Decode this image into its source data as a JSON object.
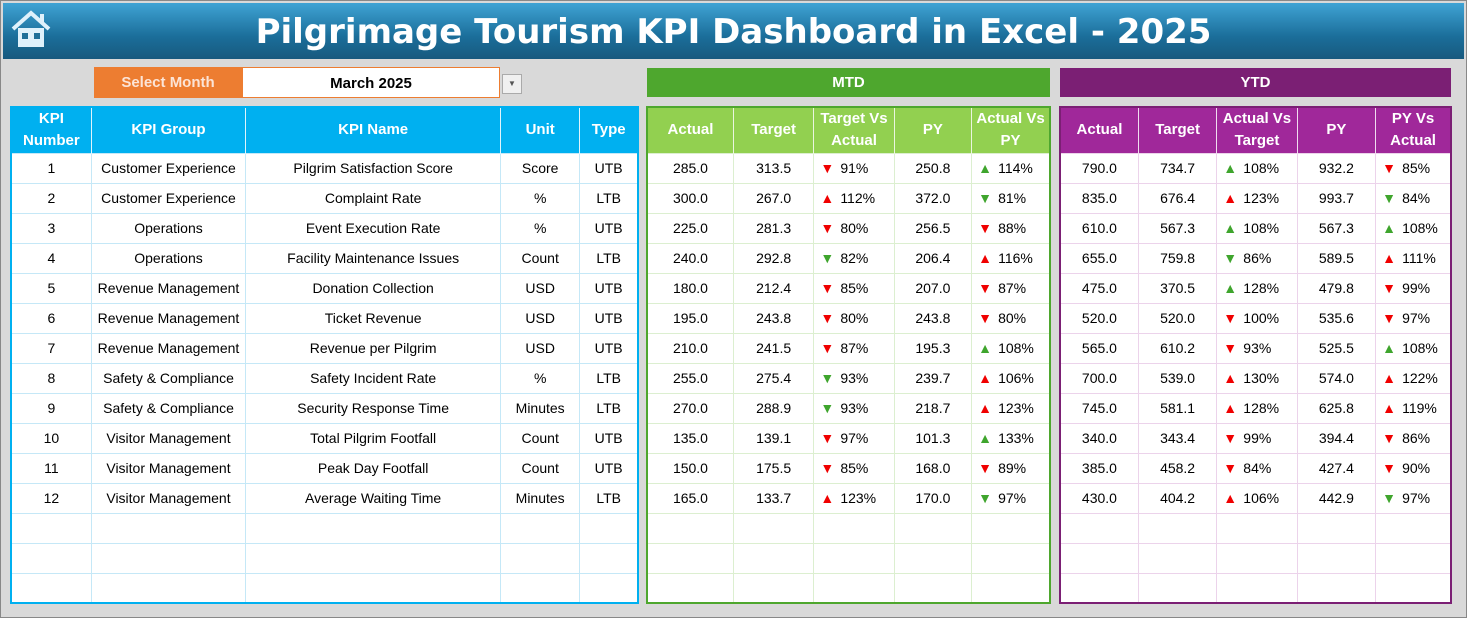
{
  "title": "Pilgrimage Tourism KPI Dashboard in Excel - 2025",
  "home_icon": "home-icon",
  "select_month": {
    "label": "Select Month",
    "value": "March 2025"
  },
  "colors": {
    "left": "#00b0f0",
    "mtd": "#4ea72e",
    "ytd": "#7b1f74",
    "select": "#ed7d31",
    "up_good": "#3fa52d",
    "bad": "#f00000"
  },
  "mtd_label": "MTD",
  "ytd_label": "YTD",
  "left_headers": [
    "KPI Number",
    "KPI Group",
    "KPI Name",
    "Unit",
    "Type"
  ],
  "mtd_headers": [
    "Actual",
    "Target",
    "Target Vs Actual",
    "PY",
    "Actual Vs PY"
  ],
  "ytd_headers": [
    "Actual",
    "Target",
    "Actual Vs Target",
    "PY",
    "PY Vs Actual"
  ],
  "kpis": [
    [
      "1",
      "Customer Experience",
      "Pilgrim Satisfaction Score",
      "Score",
      "UTB"
    ],
    [
      "2",
      "Customer Experience",
      "Complaint Rate",
      "%",
      "LTB"
    ],
    [
      "3",
      "Operations",
      "Event Execution Rate",
      "%",
      "UTB"
    ],
    [
      "4",
      "Operations",
      "Facility Maintenance Issues",
      "Count",
      "LTB"
    ],
    [
      "5",
      "Revenue Management",
      "Donation Collection",
      "USD",
      "UTB"
    ],
    [
      "6",
      "Revenue Management",
      "Ticket Revenue",
      "USD",
      "UTB"
    ],
    [
      "7",
      "Revenue Management",
      "Revenue per Pilgrim",
      "USD",
      "UTB"
    ],
    [
      "8",
      "Safety & Compliance",
      "Safety Incident Rate",
      "%",
      "LTB"
    ],
    [
      "9",
      "Safety & Compliance",
      "Security Response Time",
      "Minutes",
      "LTB"
    ],
    [
      "10",
      "Visitor Management",
      "Total Pilgrim Footfall",
      "Count",
      "UTB"
    ],
    [
      "11",
      "Visitor Management",
      "Peak Day Footfall",
      "Count",
      "UTB"
    ],
    [
      "12",
      "Visitor Management",
      "Average Waiting Time",
      "Minutes",
      "LTB"
    ]
  ],
  "mtd": [
    [
      "285.0",
      "313.5",
      {
        "v": "91%",
        "a": "down",
        "c": "red"
      },
      "250.8",
      {
        "v": "114%",
        "a": "up",
        "c": "green"
      }
    ],
    [
      "300.0",
      "267.0",
      {
        "v": "112%",
        "a": "up",
        "c": "red"
      },
      "372.0",
      {
        "v": "81%",
        "a": "down",
        "c": "green"
      }
    ],
    [
      "225.0",
      "281.3",
      {
        "v": "80%",
        "a": "down",
        "c": "red"
      },
      "256.5",
      {
        "v": "88%",
        "a": "down",
        "c": "red"
      }
    ],
    [
      "240.0",
      "292.8",
      {
        "v": "82%",
        "a": "down",
        "c": "green"
      },
      "206.4",
      {
        "v": "116%",
        "a": "up",
        "c": "red"
      }
    ],
    [
      "180.0",
      "212.4",
      {
        "v": "85%",
        "a": "down",
        "c": "red"
      },
      "207.0",
      {
        "v": "87%",
        "a": "down",
        "c": "red"
      }
    ],
    [
      "195.0",
      "243.8",
      {
        "v": "80%",
        "a": "down",
        "c": "red"
      },
      "243.8",
      {
        "v": "80%",
        "a": "down",
        "c": "red"
      }
    ],
    [
      "210.0",
      "241.5",
      {
        "v": "87%",
        "a": "down",
        "c": "red"
      },
      "195.3",
      {
        "v": "108%",
        "a": "up",
        "c": "green"
      }
    ],
    [
      "255.0",
      "275.4",
      {
        "v": "93%",
        "a": "down",
        "c": "green"
      },
      "239.7",
      {
        "v": "106%",
        "a": "up",
        "c": "red"
      }
    ],
    [
      "270.0",
      "288.9",
      {
        "v": "93%",
        "a": "down",
        "c": "green"
      },
      "218.7",
      {
        "v": "123%",
        "a": "up",
        "c": "red"
      }
    ],
    [
      "135.0",
      "139.1",
      {
        "v": "97%",
        "a": "down",
        "c": "red"
      },
      "101.3",
      {
        "v": "133%",
        "a": "up",
        "c": "green"
      }
    ],
    [
      "150.0",
      "175.5",
      {
        "v": "85%",
        "a": "down",
        "c": "red"
      },
      "168.0",
      {
        "v": "89%",
        "a": "down",
        "c": "red"
      }
    ],
    [
      "165.0",
      "133.7",
      {
        "v": "123%",
        "a": "up",
        "c": "red"
      },
      "170.0",
      {
        "v": "97%",
        "a": "down",
        "c": "green"
      }
    ]
  ],
  "ytd": [
    [
      "790.0",
      "734.7",
      {
        "v": "108%",
        "a": "up",
        "c": "green"
      },
      "932.2",
      {
        "v": "85%",
        "a": "down",
        "c": "red"
      }
    ],
    [
      "835.0",
      "676.4",
      {
        "v": "123%",
        "a": "up",
        "c": "red"
      },
      "993.7",
      {
        "v": "84%",
        "a": "down",
        "c": "green"
      }
    ],
    [
      "610.0",
      "567.3",
      {
        "v": "108%",
        "a": "up",
        "c": "green"
      },
      "567.3",
      {
        "v": "108%",
        "a": "up",
        "c": "green"
      }
    ],
    [
      "655.0",
      "759.8",
      {
        "v": "86%",
        "a": "down",
        "c": "green"
      },
      "589.5",
      {
        "v": "111%",
        "a": "up",
        "c": "red"
      }
    ],
    [
      "475.0",
      "370.5",
      {
        "v": "128%",
        "a": "up",
        "c": "green"
      },
      "479.8",
      {
        "v": "99%",
        "a": "down",
        "c": "red"
      }
    ],
    [
      "520.0",
      "520.0",
      {
        "v": "100%",
        "a": "down",
        "c": "red"
      },
      "535.6",
      {
        "v": "97%",
        "a": "down",
        "c": "red"
      }
    ],
    [
      "565.0",
      "610.2",
      {
        "v": "93%",
        "a": "down",
        "c": "red"
      },
      "525.5",
      {
        "v": "108%",
        "a": "up",
        "c": "green"
      }
    ],
    [
      "700.0",
      "539.0",
      {
        "v": "130%",
        "a": "up",
        "c": "red"
      },
      "574.0",
      {
        "v": "122%",
        "a": "up",
        "c": "red"
      }
    ],
    [
      "745.0",
      "581.1",
      {
        "v": "128%",
        "a": "up",
        "c": "red"
      },
      "625.8",
      {
        "v": "119%",
        "a": "up",
        "c": "red"
      }
    ],
    [
      "340.0",
      "343.4",
      {
        "v": "99%",
        "a": "down",
        "c": "red"
      },
      "394.4",
      {
        "v": "86%",
        "a": "down",
        "c": "red"
      }
    ],
    [
      "385.0",
      "458.2",
      {
        "v": "84%",
        "a": "down",
        "c": "red"
      },
      "427.4",
      {
        "v": "90%",
        "a": "down",
        "c": "red"
      }
    ],
    [
      "430.0",
      "404.2",
      {
        "v": "106%",
        "a": "up",
        "c": "red"
      },
      "442.9",
      {
        "v": "97%",
        "a": "down",
        "c": "green"
      }
    ]
  ]
}
